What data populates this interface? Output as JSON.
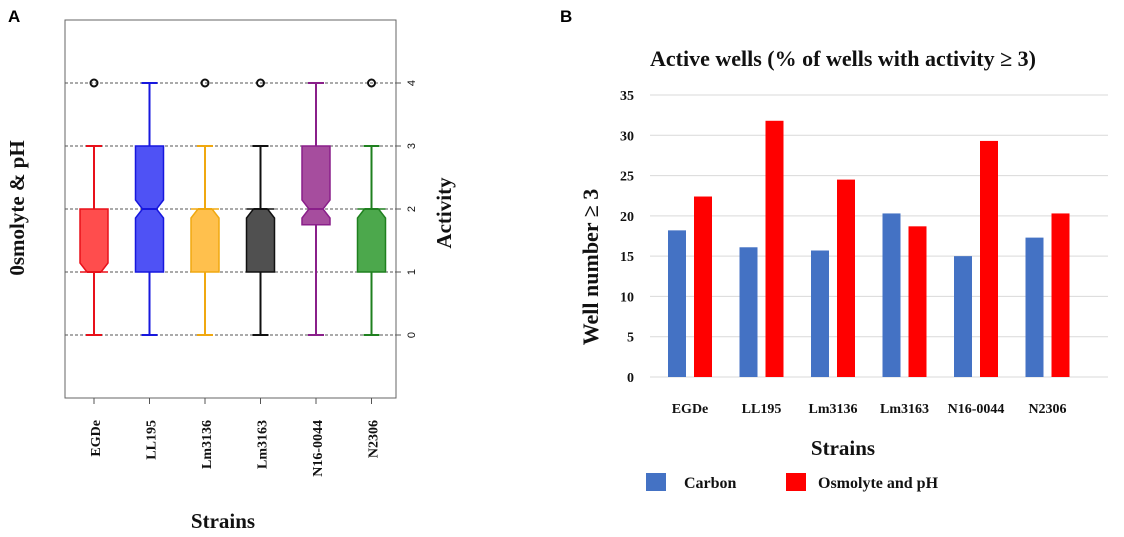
{
  "panels": {
    "a_label": "A",
    "b_label": "B"
  },
  "chart_data": [
    {
      "type": "boxplot",
      "ylabel_left": "0smolyte & pH",
      "ylabel_right": "Activity",
      "xlabel": "Strains",
      "ylim": [
        -1,
        5
      ],
      "yticks": [
        "0",
        "1",
        "2",
        "3",
        "4"
      ],
      "grid": true,
      "categories": [
        "EGDe",
        "LL195",
        "Lm3136",
        "Lm3163",
        "N16-0044",
        "N2306"
      ],
      "boxes": [
        {
          "name": "EGDe",
          "min": 0,
          "q1": 1,
          "median": 1,
          "q3": 2,
          "max": 3,
          "outlier": 4,
          "color": "#ff4d4d",
          "stroke": "#e8101a"
        },
        {
          "name": "LL195",
          "min": 0,
          "q1": 1,
          "median": 2,
          "q3": 3,
          "max": 4,
          "outlier": null,
          "color": "#4f52f5",
          "stroke": "#1717de"
        },
        {
          "name": "Lm3136",
          "min": 0,
          "q1": 1,
          "median": 2,
          "q3": 2,
          "max": 3,
          "outlier": 4,
          "color": "#ffc04d",
          "stroke": "#f0a810"
        },
        {
          "name": "Lm3163",
          "min": 0,
          "q1": 1,
          "median": 2,
          "q3": 2,
          "max": 3,
          "outlier": 4,
          "color": "#505050",
          "stroke": "#111111"
        },
        {
          "name": "N16-0044",
          "min": 0,
          "q1": 1.75,
          "median": 2,
          "q3": 3,
          "max": 4,
          "outlier": null,
          "color": "#a64d9e",
          "stroke": "#8a1f8a"
        },
        {
          "name": "N2306",
          "min": 0,
          "q1": 1,
          "median": 2,
          "q3": 2,
          "max": 3,
          "outlier": 4,
          "color": "#4ca84c",
          "stroke": "#1f801f"
        }
      ]
    },
    {
      "type": "bar",
      "title": "Active wells (% of wells with activity ≥ 3)",
      "xlabel": "Strains",
      "ylabel": "Well number ≥ 3",
      "ylim": [
        0,
        35
      ],
      "yticks": [
        "0",
        "5",
        "10",
        "15",
        "20",
        "25",
        "30",
        "35"
      ],
      "categories": [
        "EGDe",
        "LL195",
        "Lm3136",
        "Lm3163",
        "N16-0044",
        "N2306"
      ],
      "series": [
        {
          "name": "Carbon",
          "color": "#4472c4",
          "values": [
            18.2,
            16.1,
            15.7,
            20.3,
            15.0,
            17.3
          ]
        },
        {
          "name": "Osmolyte and pH",
          "color": "#ff0000",
          "values": [
            22.4,
            31.8,
            24.5,
            18.7,
            29.3,
            20.3
          ]
        }
      ],
      "legend": "bottom"
    }
  ]
}
